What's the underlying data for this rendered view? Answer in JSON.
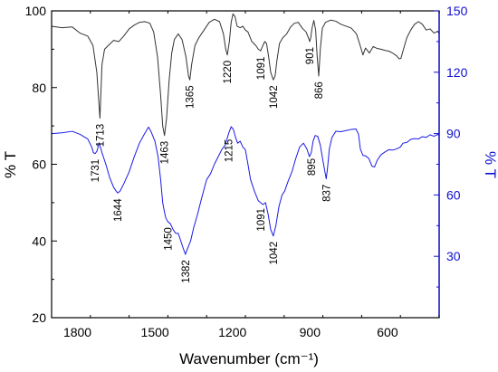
{
  "chart_data": {
    "type": "line",
    "title": "",
    "xlabel": "Wavenumber (cm⁻¹)",
    "ylabel_left": "% T",
    "ylabel_right": "% T",
    "xlim": [
      1900,
      400
    ],
    "ylim_left": [
      20,
      100
    ],
    "ylim_right": [
      0,
      150
    ],
    "x_ticks": [
      1800,
      1500,
      1200,
      900,
      600
    ],
    "y_left_ticks": [
      20,
      40,
      60,
      80,
      100
    ],
    "y_right_ticks": [
      30,
      60,
      90,
      120,
      150
    ],
    "right_axis_color": "#1010d0",
    "grid": false,
    "legend": "none",
    "series": [
      {
        "color": "#333333",
        "axis": "left",
        "points": [
          [
            1900,
            96
          ],
          [
            1860,
            95.6
          ],
          [
            1820,
            95.8
          ],
          [
            1790,
            94.2
          ],
          [
            1760,
            93.4
          ],
          [
            1740,
            91
          ],
          [
            1725,
            84
          ],
          [
            1713,
            72
          ],
          [
            1705,
            86
          ],
          [
            1695,
            90
          ],
          [
            1680,
            91
          ],
          [
            1660,
            92.3
          ],
          [
            1640,
            92
          ],
          [
            1620,
            93.5
          ],
          [
            1600,
            95.3
          ],
          [
            1580,
            96.3
          ],
          [
            1560,
            97
          ],
          [
            1540,
            97.2
          ],
          [
            1520,
            96.8
          ],
          [
            1505,
            94.5
          ],
          [
            1490,
            88
          ],
          [
            1478,
            78
          ],
          [
            1470,
            70
          ],
          [
            1463,
            67.5
          ],
          [
            1455,
            72
          ],
          [
            1445,
            82
          ],
          [
            1435,
            89
          ],
          [
            1425,
            92.5
          ],
          [
            1410,
            94
          ],
          [
            1395,
            92.5
          ],
          [
            1380,
            88
          ],
          [
            1370,
            83
          ],
          [
            1365,
            82
          ],
          [
            1358,
            86
          ],
          [
            1345,
            91
          ],
          [
            1330,
            93
          ],
          [
            1310,
            95
          ],
          [
            1290,
            97
          ],
          [
            1270,
            97.8
          ],
          [
            1250,
            97.2
          ],
          [
            1235,
            94
          ],
          [
            1226,
            90
          ],
          [
            1220,
            88.5
          ],
          [
            1212,
            92
          ],
          [
            1205,
            97
          ],
          [
            1198,
            99.2
          ],
          [
            1190,
            98.5
          ],
          [
            1182,
            96
          ],
          [
            1170,
            95.6
          ],
          [
            1160,
            96
          ],
          [
            1150,
            95
          ],
          [
            1140,
            94.5
          ],
          [
            1125,
            92
          ],
          [
            1110,
            91
          ],
          [
            1100,
            90
          ],
          [
            1091,
            89.6
          ],
          [
            1082,
            91
          ],
          [
            1075,
            92
          ],
          [
            1068,
            91.5
          ],
          [
            1060,
            88
          ],
          [
            1052,
            84
          ],
          [
            1042,
            82
          ],
          [
            1035,
            83
          ],
          [
            1028,
            87
          ],
          [
            1018,
            91.5
          ],
          [
            1005,
            93
          ],
          [
            990,
            94
          ],
          [
            975,
            95.8
          ],
          [
            960,
            96.8
          ],
          [
            945,
            97
          ],
          [
            930,
            95.5
          ],
          [
            915,
            94.5
          ],
          [
            905,
            92.8
          ],
          [
            901,
            92
          ],
          [
            897,
            93
          ],
          [
            892,
            95.5
          ],
          [
            885,
            97.5
          ],
          [
            878,
            95
          ],
          [
            872,
            88
          ],
          [
            866,
            83
          ],
          [
            860,
            90
          ],
          [
            852,
            95.5
          ],
          [
            840,
            97
          ],
          [
            820,
            97.6
          ],
          [
            800,
            97.3
          ],
          [
            780,
            96.5
          ],
          [
            760,
            96
          ],
          [
            740,
            95.5
          ],
          [
            720,
            94
          ],
          [
            705,
            90.8
          ],
          [
            695,
            88.5
          ],
          [
            685,
            90.3
          ],
          [
            670,
            89
          ],
          [
            655,
            90.7
          ],
          [
            640,
            90.2
          ],
          [
            625,
            90
          ],
          [
            610,
            89.7
          ],
          [
            595,
            89.5
          ],
          [
            580,
            89
          ],
          [
            565,
            88.3
          ],
          [
            555,
            87.5
          ],
          [
            548,
            87.6
          ],
          [
            538,
            90
          ],
          [
            525,
            93
          ],
          [
            510,
            95
          ],
          [
            495,
            96.5
          ],
          [
            480,
            97.2
          ],
          [
            465,
            96.5
          ],
          [
            450,
            95
          ],
          [
            435,
            95.3
          ],
          [
            420,
            94.2
          ],
          [
            405,
            94.7
          ],
          [
            400,
            94
          ]
        ]
      },
      {
        "color": "#1a1ae6",
        "axis": "left",
        "points": [
          [
            1900,
            68
          ],
          [
            1860,
            68.2
          ],
          [
            1820,
            68.6
          ],
          [
            1790,
            67.8
          ],
          [
            1760,
            66.6
          ],
          [
            1745,
            64.5
          ],
          [
            1738,
            63
          ],
          [
            1731,
            62.8
          ],
          [
            1724,
            63.5
          ],
          [
            1716,
            65.6
          ],
          [
            1705,
            63
          ],
          [
            1690,
            60
          ],
          [
            1675,
            56.5
          ],
          [
            1660,
            54
          ],
          [
            1650,
            53
          ],
          [
            1644,
            52.5
          ],
          [
            1635,
            53
          ],
          [
            1620,
            55
          ],
          [
            1600,
            58
          ],
          [
            1580,
            62
          ],
          [
            1560,
            65.5
          ],
          [
            1540,
            68
          ],
          [
            1525,
            69.7
          ],
          [
            1515,
            68.5
          ],
          [
            1500,
            66
          ],
          [
            1488,
            62
          ],
          [
            1478,
            56
          ],
          [
            1470,
            50
          ],
          [
            1463,
            47.5
          ],
          [
            1458,
            46
          ],
          [
            1450,
            45
          ],
          [
            1440,
            44.5
          ],
          [
            1430,
            43
          ],
          [
            1420,
            42
          ],
          [
            1410,
            42
          ],
          [
            1400,
            40
          ],
          [
            1390,
            38
          ],
          [
            1382,
            36.5
          ],
          [
            1374,
            38
          ],
          [
            1362,
            40
          ],
          [
            1350,
            43.5
          ],
          [
            1335,
            47
          ],
          [
            1320,
            51
          ],
          [
            1300,
            56
          ],
          [
            1285,
            57.5
          ],
          [
            1270,
            60
          ],
          [
            1255,
            62
          ],
          [
            1240,
            64
          ],
          [
            1228,
            65
          ],
          [
            1215,
            68
          ],
          [
            1205,
            69.8
          ],
          [
            1196,
            69
          ],
          [
            1188,
            67
          ],
          [
            1180,
            65.5
          ],
          [
            1170,
            66
          ],
          [
            1160,
            64.5
          ],
          [
            1150,
            63.8
          ],
          [
            1140,
            60
          ],
          [
            1130,
            56
          ],
          [
            1115,
            53
          ],
          [
            1100,
            50.5
          ],
          [
            1091,
            50
          ],
          [
            1082,
            49.5
          ],
          [
            1072,
            50
          ],
          [
            1062,
            47
          ],
          [
            1052,
            43
          ],
          [
            1042,
            41.3
          ],
          [
            1032,
            44
          ],
          [
            1020,
            49
          ],
          [
            1008,
            52
          ],
          [
            998,
            53
          ],
          [
            985,
            55.5
          ],
          [
            970,
            58
          ],
          [
            955,
            61.5
          ],
          [
            940,
            64.5
          ],
          [
            925,
            65.5
          ],
          [
            912,
            64
          ],
          [
            902,
            62
          ],
          [
            895,
            63
          ],
          [
            888,
            66
          ],
          [
            880,
            67.5
          ],
          [
            870,
            67.3
          ],
          [
            860,
            65
          ],
          [
            850,
            61
          ],
          [
            842,
            58
          ],
          [
            837,
            56.2
          ],
          [
            832,
            59
          ],
          [
            825,
            64
          ],
          [
            815,
            67
          ],
          [
            800,
            68.6
          ],
          [
            780,
            68.5
          ],
          [
            760,
            68.8
          ],
          [
            740,
            69.1
          ],
          [
            722,
            69.2
          ],
          [
            712,
            67.8
          ],
          [
            705,
            64
          ],
          [
            695,
            62.3
          ],
          [
            685,
            62.2
          ],
          [
            672,
            61.5
          ],
          [
            660,
            59.5
          ],
          [
            650,
            59.3
          ],
          [
            640,
            61
          ],
          [
            625,
            62.5
          ],
          [
            610,
            63.2
          ],
          [
            595,
            63.8
          ],
          [
            580,
            63.7
          ],
          [
            565,
            64
          ],
          [
            550,
            64.5
          ],
          [
            540,
            65.5
          ],
          [
            525,
            65.7
          ],
          [
            510,
            66.5
          ],
          [
            495,
            66.7
          ],
          [
            480,
            66.6
          ],
          [
            465,
            67.2
          ],
          [
            450,
            67
          ],
          [
            435,
            67.7
          ],
          [
            420,
            67.3
          ],
          [
            405,
            67.8
          ],
          [
            400,
            67.5
          ]
        ]
      }
    ],
    "annotations": [
      {
        "text": "1713",
        "x": 1713,
        "y": 71.5
      },
      {
        "text": "1365",
        "x": 1365,
        "y": 81.5
      },
      {
        "text": "1220",
        "x": 1220,
        "y": 88
      },
      {
        "text": "1091",
        "x": 1091,
        "y": 89
      },
      {
        "text": "1042",
        "x": 1042,
        "y": 81.5
      },
      {
        "text": "901",
        "x": 901,
        "y": 91.5
      },
      {
        "text": "866",
        "x": 866,
        "y": 82.5
      },
      {
        "text": "1463",
        "x": 1463,
        "y": 67
      },
      {
        "text": "1731",
        "x": 1731,
        "y": 62.3
      },
      {
        "text": "1644",
        "x": 1644,
        "y": 52
      },
      {
        "text": "1215",
        "x": 1215,
        "y": 67.5
      },
      {
        "text": "895",
        "x": 895,
        "y": 62.5
      },
      {
        "text": "837",
        "x": 837,
        "y": 55.7
      },
      {
        "text": "1091",
        "x": 1091,
        "y": 49.5
      },
      {
        "text": "1042",
        "x": 1042,
        "y": 40.8
      },
      {
        "text": "1450",
        "x": 1450,
        "y": 44.5
      },
      {
        "text": "1382",
        "x": 1382,
        "y": 36
      }
    ]
  }
}
